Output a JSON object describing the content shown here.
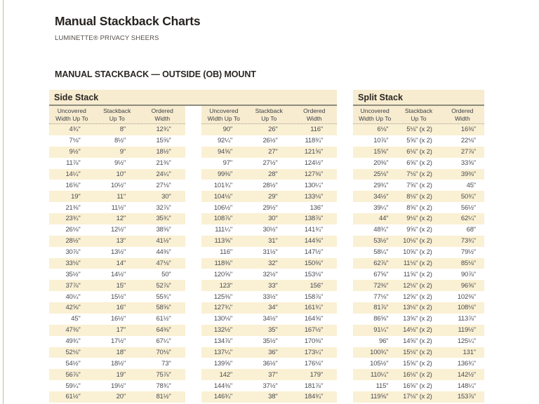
{
  "page": {
    "title": "Manual Stackback Charts",
    "subtitle": "LUMINETTE® PRIVACY SHEERS",
    "section_heading": "MANUAL STACKBACK — OUTSIDE (OB) MOUNT"
  },
  "colors": {
    "row_cream": "#faf0d3",
    "band_cream": "#f7ecd0",
    "rule_olive": "#8e8c7e",
    "text_dark": "#2a2724",
    "cell_text": "#474a52"
  },
  "sections": {
    "side_stack": {
      "title": "Side Stack"
    },
    "split_stack": {
      "title": "Split Stack"
    }
  },
  "column_headers": [
    [
      "Uncovered",
      "Width Up To"
    ],
    [
      "Stackback",
      "Up To"
    ],
    [
      "Ordered",
      "Width"
    ]
  ],
  "tables": {
    "sideA": {
      "rows": [
        [
          "4¾\"",
          "8\"",
          "12¾\""
        ],
        [
          "7⅛\"",
          "8½\"",
          "15⅝\""
        ],
        [
          "9½\"",
          "9\"",
          "18½\""
        ],
        [
          "11⅞\"",
          "9½\"",
          "21⅜\""
        ],
        [
          "14¼\"",
          "10\"",
          "24¼\""
        ],
        [
          "16⅝\"",
          "10½\"",
          "27⅛\""
        ],
        [
          "19\"",
          "11\"",
          "30\""
        ],
        [
          "21⅜\"",
          "11½\"",
          "32⅞\""
        ],
        [
          "23¾\"",
          "12\"",
          "35¾\""
        ],
        [
          "26⅛\"",
          "12½\"",
          "38⅝\""
        ],
        [
          "28½\"",
          "13\"",
          "41½\""
        ],
        [
          "30⅞\"",
          "13½\"",
          "44⅜\""
        ],
        [
          "33⅛\"",
          "14\"",
          "47⅛\""
        ],
        [
          "35½\"",
          "14½\"",
          "50\""
        ],
        [
          "37⅞\"",
          "15\"",
          "52⅞\""
        ],
        [
          "40¼\"",
          "15½\"",
          "55¾\""
        ],
        [
          "42⅝\"",
          "16\"",
          "58⅝\""
        ],
        [
          "45\"",
          "16½\"",
          "61½\""
        ],
        [
          "47⅜\"",
          "17\"",
          "64⅜\""
        ],
        [
          "49¾\"",
          "17½\"",
          "67¼\""
        ],
        [
          "52⅛\"",
          "18\"",
          "70⅛\""
        ],
        [
          "54½\"",
          "18½\"",
          "73\""
        ],
        [
          "56⅞\"",
          "19\"",
          "75⅞\""
        ],
        [
          "59¼\"",
          "19½\"",
          "78¾\""
        ],
        [
          "61½\"",
          "20\"",
          "81½\""
        ]
      ]
    },
    "sideB": {
      "rows": [
        [
          "90\"",
          "26\"",
          "116\""
        ],
        [
          "92¼\"",
          "26½\"",
          "118¾\""
        ],
        [
          "94⅝\"",
          "27\"",
          "121⅝\""
        ],
        [
          "97\"",
          "27½\"",
          "124½\""
        ],
        [
          "99⅜\"",
          "28\"",
          "127⅜\""
        ],
        [
          "101¾\"",
          "28½\"",
          "130¼\""
        ],
        [
          "104⅛\"",
          "29\"",
          "133⅛\""
        ],
        [
          "106½\"",
          "29½\"",
          "136\""
        ],
        [
          "108⅞\"",
          "30\"",
          "138⅞\""
        ],
        [
          "111¼\"",
          "30½\"",
          "141¾\""
        ],
        [
          "113⅝\"",
          "31\"",
          "144⅝\""
        ],
        [
          "116\"",
          "31½\"",
          "147½\""
        ],
        [
          "118⅜\"",
          "32\"",
          "150⅜\""
        ],
        [
          "120⅝\"",
          "32½\"",
          "153⅛\""
        ],
        [
          "123\"",
          "33\"",
          "156\""
        ],
        [
          "125⅜\"",
          "33½\"",
          "158⅞\""
        ],
        [
          "127¾\"",
          "34\"",
          "161¾\""
        ],
        [
          "130⅛\"",
          "34½\"",
          "164⅝\""
        ],
        [
          "132½\"",
          "35\"",
          "167½\""
        ],
        [
          "134⅞\"",
          "35½\"",
          "170⅜\""
        ],
        [
          "137¼\"",
          "36\"",
          "173¼\""
        ],
        [
          "139⅝\"",
          "36½\"",
          "176⅛\""
        ],
        [
          "142\"",
          "37\"",
          "179\""
        ],
        [
          "144⅜\"",
          "37½\"",
          "181⅞\""
        ],
        [
          "146¾\"",
          "38\"",
          "184¾\""
        ]
      ]
    },
    "split": {
      "rows": [
        [
          "6⅛\"",
          "5⅛\" (x 2)",
          "16⅜\""
        ],
        [
          "10⅞\"",
          "5⅝\" (x 2)",
          "22⅛\""
        ],
        [
          "15⅝\"",
          "6⅛\" (x 2)",
          "27⅞\""
        ],
        [
          "20⅜\"",
          "6⅝\" (x 2)",
          "33⅝\""
        ],
        [
          "25⅛\"",
          "7⅛\" (x 2)",
          "39⅜\""
        ],
        [
          "29¾\"",
          "7⅝\" (x 2)",
          "45\""
        ],
        [
          "34½\"",
          "8⅛\" (x 2)",
          "50¾\""
        ],
        [
          "39¼\"",
          "8⅝\" (x 2)",
          "56½\""
        ],
        [
          "44\"",
          "9⅛\" (x 2)",
          "62¼\""
        ],
        [
          "48¾\"",
          "9⅝\" (x 2)",
          "68\""
        ],
        [
          "53½\"",
          "10⅛\" (x 2)",
          "73¾\""
        ],
        [
          "58¼\"",
          "10⅝\" (x 2)",
          "79½\""
        ],
        [
          "62⅞\"",
          "11⅛\" (x 2)",
          "85⅛\""
        ],
        [
          "67⅝\"",
          "11⅝\" (x 2)",
          "90⅞\""
        ],
        [
          "72⅜\"",
          "12⅛\" (x 2)",
          "96⅝\""
        ],
        [
          "77⅛\"",
          "12⅝\" (x 2)",
          "102⅜\""
        ],
        [
          "81⅞\"",
          "13⅛\" (x 2)",
          "108⅛\""
        ],
        [
          "86⅝\"",
          "13⅝\" (x 2)",
          "113⅞\""
        ],
        [
          "91¼\"",
          "14⅛\" (x 2)",
          "119½\""
        ],
        [
          "96\"",
          "14⅝\" (x 2)",
          "125¼\""
        ],
        [
          "100¾\"",
          "15⅛\" (x 2)",
          "131\""
        ],
        [
          "105½\"",
          "15⅝\" (x 2)",
          "136¾\""
        ],
        [
          "110¼\"",
          "16⅛\" (x 2)",
          "142½\""
        ],
        [
          "115\"",
          "16⅝\" (x 2)",
          "148¼\""
        ],
        [
          "119⅝\"",
          "17⅛\" (x 2)",
          "153⅞\""
        ]
      ]
    }
  }
}
